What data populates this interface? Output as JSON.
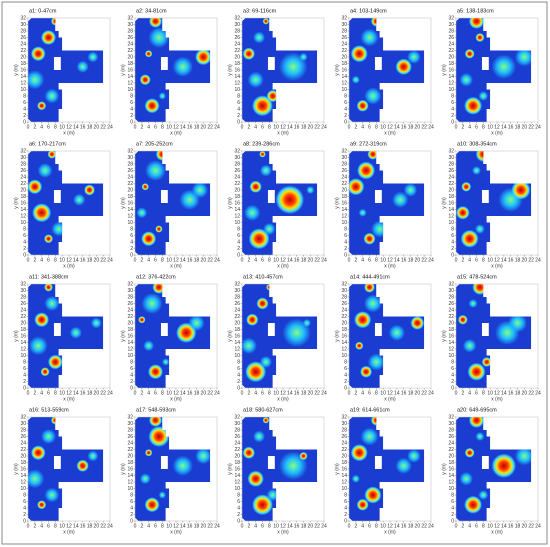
{
  "figure": {
    "panels": [
      {
        "label": "a1: 0-47cm"
      },
      {
        "label": "a2: 34-81cm"
      },
      {
        "label": "a3: 69-116cm"
      },
      {
        "label": "a4: 103-149cm"
      },
      {
        "label": "a5: 138-183cm"
      },
      {
        "label": "a6: 170-217cm"
      },
      {
        "label": "a7: 205-252cm"
      },
      {
        "label": "a8: 239-286cm"
      },
      {
        "label": "a9: 272-319cm"
      },
      {
        "label": "a10: 308-354cm"
      },
      {
        "label": "a11: 341-388cm"
      },
      {
        "label": "a12: 376-422cm"
      },
      {
        "label": "a13: 410-457cm"
      },
      {
        "label": "a14: 444-491cm"
      },
      {
        "label": "a15: 478-524cm"
      },
      {
        "label": "a16: 513-559cm"
      },
      {
        "label": "a17: 548-593cm"
      },
      {
        "label": "a18: 580-627cm"
      },
      {
        "label": "a19: 614-661cm"
      },
      {
        "label": "a20: 649-695cm"
      }
    ],
    "xticks": [
      0,
      2,
      4,
      6,
      8,
      10,
      12,
      14,
      16,
      18,
      20,
      22,
      24
    ],
    "yticks": [
      0,
      2,
      4,
      6,
      8,
      10,
      12,
      14,
      16,
      18,
      20,
      22,
      24,
      26,
      28,
      30,
      32
    ],
    "xlabel": "x (m)",
    "ylabel": "y (m)"
  }
}
